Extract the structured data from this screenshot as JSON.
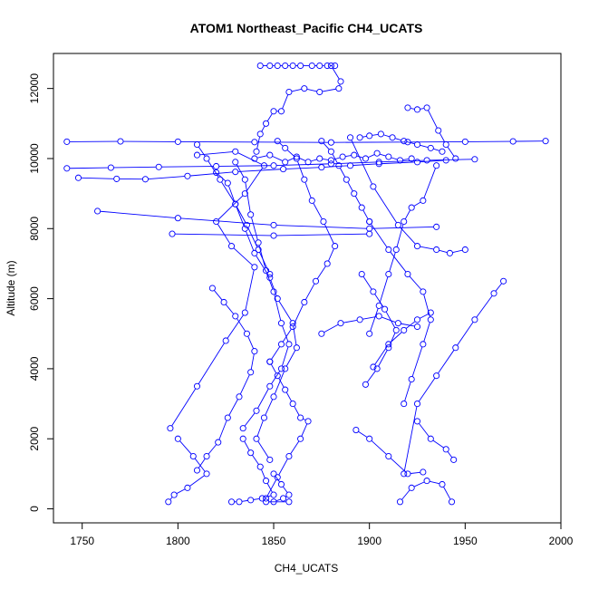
{
  "chart_data": {
    "type": "line",
    "title": "ATOM1 Northeast_Pacific CH4_UCATS",
    "xlabel": "CH4_UCATS",
    "ylabel": "Altitude (m)",
    "xlim": [
      1735,
      2000
    ],
    "ylim": [
      -400,
      13000
    ],
    "xticks": [
      1750,
      1800,
      1850,
      1900,
      1950,
      2000
    ],
    "yticks": [
      0,
      2000,
      4000,
      6000,
      8000,
      10000,
      12000
    ],
    "grid": false,
    "legend": "none",
    "series_color": "#0000ff",
    "series": [
      {
        "x": [
          1843,
          1848,
          1852,
          1856,
          1860,
          1864,
          1870,
          1874,
          1878,
          1882
        ],
        "y": [
          12650,
          12650,
          12650,
          12650,
          12650,
          12650,
          12650,
          12650,
          12650,
          12650
        ]
      },
      {
        "x": [
          1880,
          1885,
          1884,
          1874,
          1866,
          1858,
          1854,
          1850,
          1846,
          1843,
          1841
        ],
        "y": [
          12650,
          12200,
          12000,
          11900,
          12000,
          11900,
          11350,
          11350,
          11000,
          10700,
          10200
        ]
      },
      {
        "x": [
          1742,
          1770,
          1800,
          1840,
          1880,
          1920,
          1950,
          1975,
          1992
        ],
        "y": [
          10480,
          10490,
          10480,
          10470,
          10460,
          10470,
          10480,
          10490,
          10500
        ]
      },
      {
        "x": [
          1742,
          1765,
          1790,
          1820,
          1850,
          1880,
          1905,
          1930,
          1955
        ],
        "y": [
          9720,
          9740,
          9760,
          9780,
          9800,
          9850,
          9900,
          9950,
          9980
        ]
      },
      {
        "x": [
          1748,
          1768,
          1783,
          1805,
          1830,
          1855,
          1875,
          1890,
          1905,
          1925,
          1940
        ],
        "y": [
          9450,
          9420,
          9410,
          9500,
          9620,
          9700,
          9750,
          9800,
          9850,
          9900,
          9950
        ]
      },
      {
        "x": [
          1758,
          1800,
          1850,
          1900,
          1935
        ],
        "y": [
          8500,
          8300,
          8100,
          8000,
          8050
        ]
      },
      {
        "x": [
          1797,
          1850,
          1900
        ],
        "y": [
          7850,
          7800,
          7850
        ]
      },
      {
        "x": [
          1810,
          1830,
          1845,
          1835,
          1820,
          1828,
          1840,
          1835,
          1825,
          1810,
          1796
        ],
        "y": [
          10100,
          10200,
          9800,
          9000,
          8200,
          7500,
          6900,
          5600,
          4800,
          3500,
          2300
        ]
      },
      {
        "x": [
          1800,
          1808,
          1815,
          1805,
          1798,
          1795
        ],
        "y": [
          2000,
          1500,
          1000,
          600,
          400,
          200
        ]
      },
      {
        "x": [
          1820,
          1826,
          1830,
          1835,
          1840,
          1848,
          1852,
          1860,
          1862,
          1856,
          1850,
          1845,
          1841,
          1848
        ],
        "y": [
          9600,
          9300,
          8700,
          8000,
          7300,
          6600,
          6000,
          5300,
          4600,
          4000,
          3200,
          2600,
          2000,
          1400
        ]
      },
      {
        "x": [
          1830,
          1835,
          1838,
          1842,
          1846,
          1850,
          1854,
          1858,
          1854,
          1848,
          1841,
          1834
        ],
        "y": [
          9900,
          9400,
          8400,
          7600,
          6800,
          6200,
          5300,
          4700,
          4000,
          3500,
          2800,
          2300
        ]
      },
      {
        "x": [
          1834,
          1838,
          1843,
          1846,
          1850,
          1844,
          1838,
          1832,
          1828
        ],
        "y": [
          2000,
          1600,
          1200,
          800,
          400,
          300,
          250,
          200,
          200
        ]
      },
      {
        "x": [
          1852,
          1856,
          1862,
          1866,
          1870,
          1876,
          1882,
          1878,
          1872,
          1866,
          1860,
          1854,
          1848
        ],
        "y": [
          10500,
          10300,
          10000,
          9400,
          8800,
          8200,
          7500,
          7000,
          6500,
          5900,
          5200,
          4700,
          4200
        ]
      },
      {
        "x": [
          1848,
          1852,
          1856,
          1860,
          1864,
          1868,
          1864,
          1858,
          1852,
          1846
        ],
        "y": [
          4200,
          3800,
          3400,
          3000,
          2600,
          2500,
          2000,
          1500,
          900,
          300
        ]
      },
      {
        "x": [
          1875,
          1880,
          1884,
          1888,
          1892,
          1896,
          1900
        ],
        "y": [
          10500,
          10200,
          9800,
          9400,
          9000,
          8600,
          8200
        ]
      },
      {
        "x": [
          1900,
          1910,
          1920,
          1928,
          1932,
          1928,
          1922,
          1918
        ],
        "y": [
          8200,
          7400,
          6700,
          6200,
          5400,
          4700,
          3700,
          3000
        ]
      },
      {
        "x": [
          1890,
          1902,
          1915,
          1925,
          1935,
          1942,
          1950
        ],
        "y": [
          10600,
          9200,
          8100,
          7500,
          7400,
          7300,
          7400
        ]
      },
      {
        "x": [
          1920,
          1925,
          1930,
          1936,
          1940,
          1945
        ],
        "y": [
          11450,
          11400,
          11450,
          10800,
          10400,
          10000
        ]
      },
      {
        "x": [
          1935,
          1928,
          1922,
          1918,
          1914,
          1910,
          1905,
          1900
        ],
        "y": [
          9800,
          8800,
          8600,
          8200,
          7400,
          6700,
          5800,
          5000
        ]
      },
      {
        "x": [
          1875,
          1885,
          1895,
          1905,
          1915,
          1925
        ],
        "y": [
          5000,
          5300,
          5400,
          5500,
          5300,
          5200
        ]
      },
      {
        "x": [
          1902,
          1910,
          1918,
          1925,
          1932
        ],
        "y": [
          4050,
          4700,
          5100,
          5400,
          5600
        ]
      },
      {
        "x": [
          1970,
          1965,
          1955,
          1945,
          1935,
          1925,
          1918
        ],
        "y": [
          6500,
          6150,
          5400,
          4600,
          3800,
          3000,
          1000
        ]
      },
      {
        "x": [
          1925,
          1932,
          1940,
          1944
        ],
        "y": [
          2500,
          2000,
          1700,
          1400
        ]
      },
      {
        "x": [
          1928,
          1920,
          1910,
          1900,
          1893
        ],
        "y": [
          1050,
          1000,
          1500,
          2000,
          2250
        ]
      },
      {
        "x": [
          1916,
          1922,
          1930,
          1938,
          1943
        ],
        "y": [
          200,
          600,
          800,
          700,
          200
        ]
      },
      {
        "x": [
          1898,
          1904,
          1910,
          1914,
          1908,
          1902,
          1896
        ],
        "y": [
          3550,
          4000,
          4600,
          5100,
          5700,
          6200,
          6700
        ]
      },
      {
        "x": [
          1895,
          1900,
          1906,
          1912,
          1918,
          1925,
          1932,
          1938
        ],
        "y": [
          10600,
          10650,
          10700,
          10600,
          10500,
          10400,
          10300,
          10200
        ]
      },
      {
        "x": [
          1840,
          1848,
          1856,
          1862,
          1868,
          1874,
          1880,
          1886,
          1892,
          1898,
          1904,
          1910,
          1916,
          1922
        ],
        "y": [
          10000,
          10100,
          9900,
          10050,
          9900,
          10000,
          9950,
          10050,
          10100,
          10000,
          10150,
          10050,
          9950,
          10000
        ]
      },
      {
        "x": [
          1850,
          1854,
          1858,
          1855,
          1850,
          1846,
          1858
        ],
        "y": [
          1000,
          700,
          400,
          300,
          200,
          200,
          200
        ]
      },
      {
        "x": [
          1810,
          1815,
          1822,
          1830,
          1836,
          1842,
          1848
        ],
        "y": [
          10400,
          10000,
          9400,
          8700,
          8100,
          7400,
          6700
        ]
      },
      {
        "x": [
          1818,
          1824,
          1830,
          1836,
          1840,
          1838,
          1832,
          1826,
          1821,
          1815,
          1810
        ],
        "y": [
          6300,
          5900,
          5500,
          5000,
          4500,
          3900,
          3200,
          2600,
          1900,
          1500,
          1100
        ]
      }
    ]
  }
}
